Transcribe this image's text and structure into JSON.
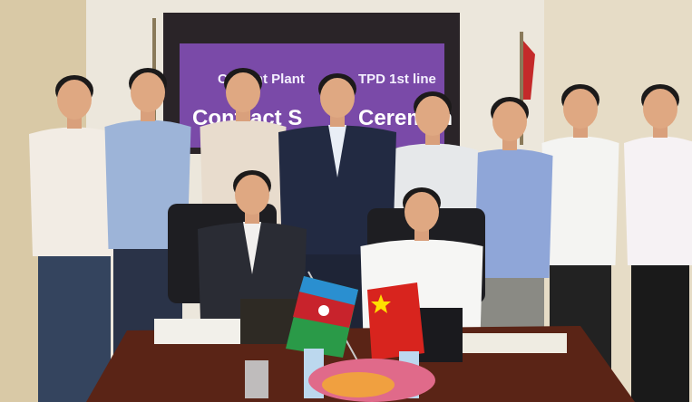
{
  "screen": {
    "line1_left": "Cement Plant",
    "line1_right": "TPD 1st line",
    "line2_left": "Contract S",
    "line2_right": "Ceremon"
  }
}
